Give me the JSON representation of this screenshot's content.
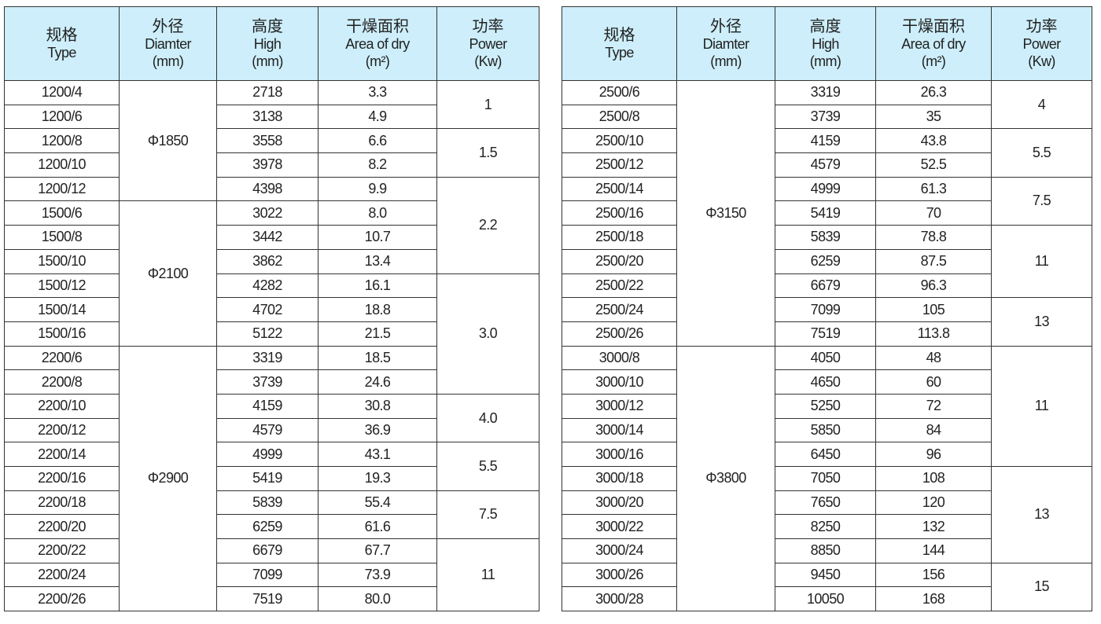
{
  "headers": [
    {
      "zh": "规格",
      "en": [
        "Type"
      ]
    },
    {
      "zh": "外径",
      "en": [
        "Diamter",
        "(mm)"
      ]
    },
    {
      "zh": "高度",
      "en": [
        "High",
        "(mm)"
      ]
    },
    {
      "zh": "干燥面积",
      "en": [
        "Area of dry",
        "(m²)"
      ]
    },
    {
      "zh": "功率",
      "en": [
        "Power",
        "(Kw)"
      ]
    }
  ],
  "colors": {
    "header_bg": "#cdeefa",
    "border": "#333333"
  },
  "tables": [
    {
      "rows": [
        {
          "type": "1200/4",
          "high": "2718",
          "area": "3.3"
        },
        {
          "type": "1200/6",
          "high": "3138",
          "area": "4.9"
        },
        {
          "type": "1200/8",
          "high": "3558",
          "area": "6.6"
        },
        {
          "type": "1200/10",
          "high": "3978",
          "area": "8.2"
        },
        {
          "type": "1200/12",
          "high": "4398",
          "area": "9.9"
        },
        {
          "type": "1500/6",
          "high": "3022",
          "area": "8.0"
        },
        {
          "type": "1500/8",
          "high": "3442",
          "area": "10.7"
        },
        {
          "type": "1500/10",
          "high": "3862",
          "area": "13.4"
        },
        {
          "type": "1500/12",
          "high": "4282",
          "area": "16.1"
        },
        {
          "type": "1500/14",
          "high": "4702",
          "area": "18.8"
        },
        {
          "type": "1500/16",
          "high": "5122",
          "area": "21.5"
        },
        {
          "type": "2200/6",
          "high": "3319",
          "area": "18.5"
        },
        {
          "type": "2200/8",
          "high": "3739",
          "area": "24.6"
        },
        {
          "type": "2200/10",
          "high": "4159",
          "area": "30.8"
        },
        {
          "type": "2200/12",
          "high": "4579",
          "area": "36.9"
        },
        {
          "type": "2200/14",
          "high": "4999",
          "area": "43.1"
        },
        {
          "type": "2200/16",
          "high": "5419",
          "area": "19.3"
        },
        {
          "type": "2200/18",
          "high": "5839",
          "area": "55.4"
        },
        {
          "type": "2200/20",
          "high": "6259",
          "area": "61.6"
        },
        {
          "type": "2200/22",
          "high": "6679",
          "area": "67.7"
        },
        {
          "type": "2200/24",
          "high": "7099",
          "area": "73.9"
        },
        {
          "type": "2200/26",
          "high": "7519",
          "area": "80.0"
        }
      ],
      "diameter_groups": [
        {
          "value": "Φ1850",
          "rows": 5
        },
        {
          "value": "Φ2100",
          "rows": 6
        },
        {
          "value": "Φ2900",
          "rows": 11
        }
      ],
      "power_groups": [
        {
          "value": "1",
          "rows": 2
        },
        {
          "value": "1.5",
          "rows": 2
        },
        {
          "value": "2.2",
          "rows": 4
        },
        {
          "value": "3.0",
          "rows": 5
        },
        {
          "value": "4.0",
          "rows": 2
        },
        {
          "value": "5.5",
          "rows": 2
        },
        {
          "value": "7.5",
          "rows": 2
        },
        {
          "value": "11",
          "rows": 3
        }
      ]
    },
    {
      "rows": [
        {
          "type": "2500/6",
          "high": "3319",
          "area": "26.3"
        },
        {
          "type": "2500/8",
          "high": "3739",
          "area": "35"
        },
        {
          "type": "2500/10",
          "high": "4159",
          "area": "43.8"
        },
        {
          "type": "2500/12",
          "high": "4579",
          "area": "52.5"
        },
        {
          "type": "2500/14",
          "high": "4999",
          "area": "61.3"
        },
        {
          "type": "2500/16",
          "high": "5419",
          "area": "70"
        },
        {
          "type": "2500/18",
          "high": "5839",
          "area": "78.8"
        },
        {
          "type": "2500/20",
          "high": "6259",
          "area": "87.5"
        },
        {
          "type": "2500/22",
          "high": "6679",
          "area": "96.3"
        },
        {
          "type": "2500/24",
          "high": "7099",
          "area": "105"
        },
        {
          "type": "2500/26",
          "high": "7519",
          "area": "113.8"
        },
        {
          "type": "3000/8",
          "high": "4050",
          "area": "48"
        },
        {
          "type": "3000/10",
          "high": "4650",
          "area": "60"
        },
        {
          "type": "3000/12",
          "high": "5250",
          "area": "72"
        },
        {
          "type": "3000/14",
          "high": "5850",
          "area": "84"
        },
        {
          "type": "3000/16",
          "high": "6450",
          "area": "96"
        },
        {
          "type": "3000/18",
          "high": "7050",
          "area": "108"
        },
        {
          "type": "3000/20",
          "high": "7650",
          "area": "120"
        },
        {
          "type": "3000/22",
          "high": "8250",
          "area": "132"
        },
        {
          "type": "3000/24",
          "high": "8850",
          "area": "144"
        },
        {
          "type": "3000/26",
          "high": "9450",
          "area": "156"
        },
        {
          "type": "3000/28",
          "high": "10050",
          "area": "168"
        }
      ],
      "diameter_groups": [
        {
          "value": "Φ3150",
          "rows": 11
        },
        {
          "value": "Φ3800",
          "rows": 11
        }
      ],
      "power_groups": [
        {
          "value": "4",
          "rows": 2
        },
        {
          "value": "5.5",
          "rows": 2
        },
        {
          "value": "7.5",
          "rows": 2
        },
        {
          "value": "11",
          "rows": 3
        },
        {
          "value": "13",
          "rows": 2
        },
        {
          "value": "11",
          "rows": 5
        },
        {
          "value": "13",
          "rows": 4
        },
        {
          "value": "15",
          "rows": 2
        }
      ]
    }
  ]
}
